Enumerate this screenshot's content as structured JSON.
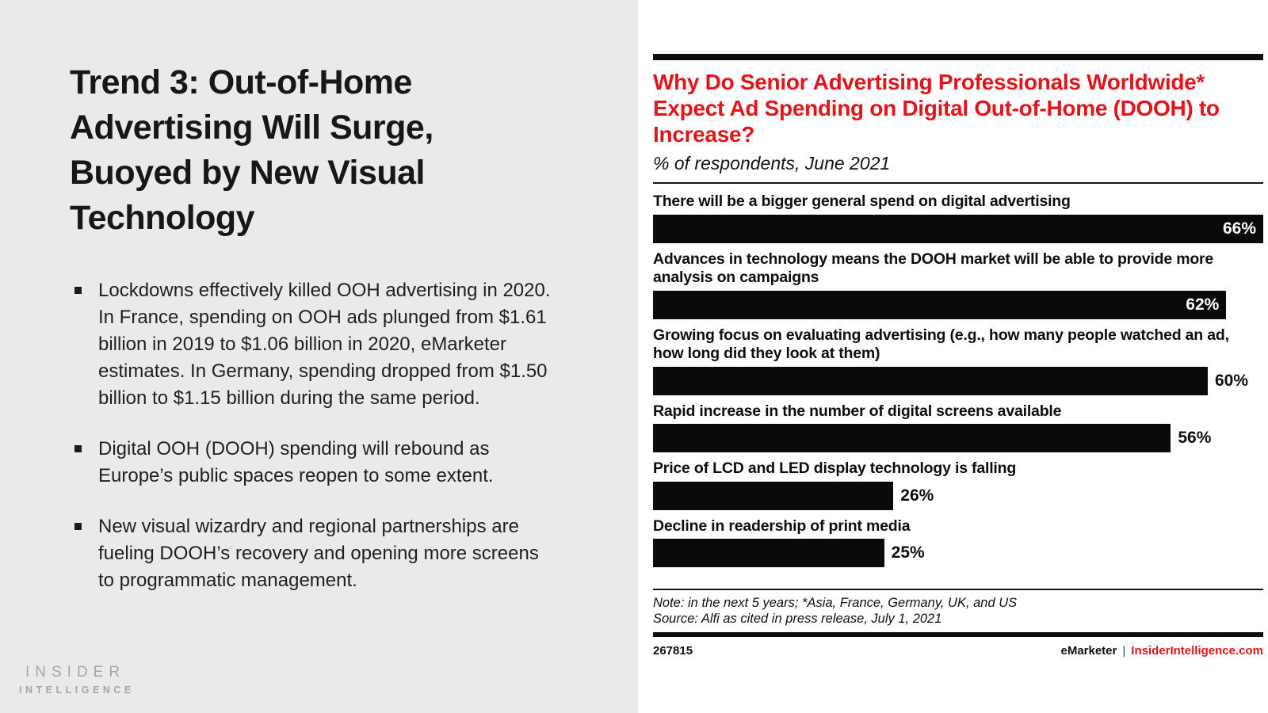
{
  "left_panel": {
    "title": "Trend 3: Out-of-Home Advertising Will Surge, Buoyed by New Visual Technology",
    "bullets": [
      "Lockdowns effectively killed OOH advertising in 2020. In France, spending on OOH ads plunged from $1.61 billion in 2019 to $1.06 billion in 2020, eMarketer estimates. In Germany, spending dropped from $1.50 billion to $1.15 billion during the same period.",
      "Digital OOH (DOOH) spending will rebound as Europe’s public spaces reopen to some extent.",
      "New visual wizardry and regional partnerships are fueling DOOH’s recovery and opening more screens to programmatic management."
    ],
    "logo": {
      "top": "INSIDER",
      "bottom": "INTELLIGENCE"
    }
  },
  "chart": {
    "note": "Note: in the next 5 years; *Asia, France, Germany, UK, and US",
    "source": "Source: Alfi as cited in press release, July 1, 2021",
    "id": "267815",
    "brand": "eMarketer",
    "separator": "|",
    "site": "InsiderIntelligence.com"
  },
  "chart_data": {
    "type": "bar",
    "orientation": "horizontal",
    "title": "Why Do Senior Advertising Professionals Worldwide* Expect Ad Spending on Digital Out-of-Home (DOOH) to Increase?",
    "subtitle": "% of respondents, June 2021",
    "categories": [
      "There will be a bigger general spend on digital advertising",
      "Advances in technology means the DOOH market will be able to provide more analysis on campaigns",
      "Growing focus on evaluating advertising (e.g., how many people watched an ad, how long did they look at them)",
      "Rapid increase in the number of digital screens available",
      "Price of LCD and LED display technology is falling",
      "Decline in readership of print media"
    ],
    "values": [
      66,
      62,
      60,
      56,
      26,
      25
    ],
    "value_labels": [
      "66%",
      "62%",
      "60%",
      "56%",
      "26%",
      "25%"
    ],
    "unit": "%",
    "xlim": [
      0,
      66
    ],
    "grid": false,
    "bar_color": "#0a0a0a",
    "value_label_position": "end-of-bar"
  },
  "colors": {
    "accent_red": "#e3141c",
    "panel_gray": "#eaeaea",
    "bar_black": "#0a0a0a",
    "logo_gray": "#a6a6a6"
  }
}
